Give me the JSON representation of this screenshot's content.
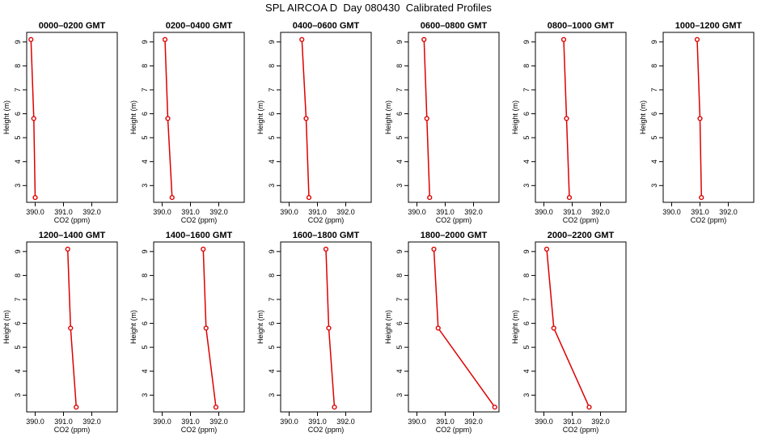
{
  "title": "SPL AIRCOA D  Day 080430  Calibrated Profiles",
  "colors": {
    "series": "#dd0000",
    "axis": "#000000"
  },
  "chart_data": [
    {
      "type": "line",
      "title": "0000–0200 GMT",
      "xlabel": "CO2 (ppm)",
      "ylabel": "Height (m)",
      "xlim": [
        389.7,
        392.9
      ],
      "ylim": [
        2.3,
        9.4
      ],
      "x_ticks": [
        "390.0",
        "391.0",
        "392.0"
      ],
      "y_ticks": [
        "3",
        "4",
        "5",
        "6",
        "7",
        "8",
        "9"
      ],
      "grid": false,
      "x": [
        389.85,
        389.95,
        390.0
      ],
      "y": [
        9.1,
        5.8,
        2.5
      ]
    },
    {
      "type": "line",
      "title": "0200–0400 GMT",
      "xlabel": "CO2 (ppm)",
      "ylabel": "Height (m)",
      "xlim": [
        389.7,
        392.9
      ],
      "ylim": [
        2.3,
        9.4
      ],
      "x_ticks": [
        "390.0",
        "391.0",
        "392.0"
      ],
      "y_ticks": [
        "3",
        "4",
        "5",
        "6",
        "7",
        "8",
        "9"
      ],
      "grid": false,
      "x": [
        390.1,
        390.2,
        390.35
      ],
      "y": [
        9.1,
        5.8,
        2.5
      ]
    },
    {
      "type": "line",
      "title": "0400–0600 GMT",
      "xlabel": "CO2 (ppm)",
      "ylabel": "Height (m)",
      "xlim": [
        389.7,
        392.9
      ],
      "ylim": [
        2.3,
        9.4
      ],
      "x_ticks": [
        "390.0",
        "391.0",
        "392.0"
      ],
      "y_ticks": [
        "3",
        "4",
        "5",
        "6",
        "7",
        "8",
        "9"
      ],
      "grid": false,
      "x": [
        390.45,
        390.6,
        390.7
      ],
      "y": [
        9.1,
        5.8,
        2.5
      ]
    },
    {
      "type": "line",
      "title": "0600–0800 GMT",
      "xlabel": "CO2 (ppm)",
      "ylabel": "Height (m)",
      "xlim": [
        389.7,
        392.9
      ],
      "ylim": [
        2.3,
        9.4
      ],
      "x_ticks": [
        "390.0",
        "391.0",
        "392.0"
      ],
      "y_ticks": [
        "3",
        "4",
        "5",
        "6",
        "7",
        "8",
        "9"
      ],
      "grid": false,
      "x": [
        390.25,
        390.35,
        390.45
      ],
      "y": [
        9.1,
        5.8,
        2.5
      ]
    },
    {
      "type": "line",
      "title": "0800–1000 GMT",
      "xlabel": "CO2 (ppm)",
      "ylabel": "Height (m)",
      "xlim": [
        389.7,
        392.9
      ],
      "ylim": [
        2.3,
        9.4
      ],
      "x_ticks": [
        "390.0",
        "391.0",
        "392.0"
      ],
      "y_ticks": [
        "3",
        "4",
        "5",
        "6",
        "7",
        "8",
        "9"
      ],
      "grid": false,
      "x": [
        390.7,
        390.8,
        390.9
      ],
      "y": [
        9.1,
        5.8,
        2.5
      ]
    },
    {
      "type": "line",
      "title": "1000–1200 GMT",
      "xlabel": "CO2 (ppm)",
      "ylabel": "Height (m)",
      "xlim": [
        389.7,
        392.9
      ],
      "ylim": [
        2.3,
        9.4
      ],
      "x_ticks": [
        "390.0",
        "391.0",
        "392.0"
      ],
      "y_ticks": [
        "3",
        "4",
        "5",
        "6",
        "7",
        "8",
        "9"
      ],
      "grid": false,
      "x": [
        390.9,
        391.0,
        391.05
      ],
      "y": [
        9.1,
        5.8,
        2.5
      ]
    },
    {
      "type": "line",
      "title": "1200–1400 GMT",
      "xlabel": "CO2 (ppm)",
      "ylabel": "Height (m)",
      "xlim": [
        389.7,
        392.9
      ],
      "ylim": [
        2.3,
        9.4
      ],
      "x_ticks": [
        "390.0",
        "391.0",
        "392.0"
      ],
      "y_ticks": [
        "3",
        "4",
        "5",
        "6",
        "7",
        "8",
        "9"
      ],
      "grid": false,
      "x": [
        391.15,
        391.25,
        391.45
      ],
      "y": [
        9.1,
        5.8,
        2.5
      ]
    },
    {
      "type": "line",
      "title": "1400–1600 GMT",
      "xlabel": "CO2 (ppm)",
      "ylabel": "Height (m)",
      "xlim": [
        389.7,
        392.9
      ],
      "ylim": [
        2.3,
        9.4
      ],
      "x_ticks": [
        "390.0",
        "391.0",
        "392.0"
      ],
      "y_ticks": [
        "3",
        "4",
        "5",
        "6",
        "7",
        "8",
        "9"
      ],
      "grid": false,
      "x": [
        391.45,
        391.55,
        391.9
      ],
      "y": [
        9.1,
        5.8,
        2.5
      ]
    },
    {
      "type": "line",
      "title": "1600–1800 GMT",
      "xlabel": "CO2 (ppm)",
      "ylabel": "Height (m)",
      "xlim": [
        389.7,
        392.9
      ],
      "ylim": [
        2.3,
        9.4
      ],
      "x_ticks": [
        "390.0",
        "391.0",
        "392.0"
      ],
      "y_ticks": [
        "3",
        "4",
        "5",
        "6",
        "7",
        "8",
        "9"
      ],
      "grid": false,
      "x": [
        391.3,
        391.4,
        391.6
      ],
      "y": [
        9.1,
        5.8,
        2.5
      ]
    },
    {
      "type": "line",
      "title": "1800–2000 GMT",
      "xlabel": "CO2 (ppm)",
      "ylabel": "Height (m)",
      "xlim": [
        389.7,
        392.9
      ],
      "ylim": [
        2.3,
        9.4
      ],
      "x_ticks": [
        "390.0",
        "391.0",
        "392.0"
      ],
      "y_ticks": [
        "3",
        "4",
        "5",
        "6",
        "7",
        "8",
        "9"
      ],
      "grid": false,
      "x": [
        390.6,
        390.75,
        392.75
      ],
      "y": [
        9.1,
        5.8,
        2.5
      ]
    },
    {
      "type": "line",
      "title": "2000–2200 GMT",
      "xlabel": "CO2 (ppm)",
      "ylabel": "Height (m)",
      "xlim": [
        389.7,
        392.9
      ],
      "ylim": [
        2.3,
        9.4
      ],
      "x_ticks": [
        "390.0",
        "391.0",
        "392.0"
      ],
      "y_ticks": [
        "3",
        "4",
        "5",
        "6",
        "7",
        "8",
        "9"
      ],
      "grid": false,
      "x": [
        390.1,
        390.35,
        391.6
      ],
      "y": [
        9.1,
        5.8,
        2.5
      ]
    }
  ]
}
